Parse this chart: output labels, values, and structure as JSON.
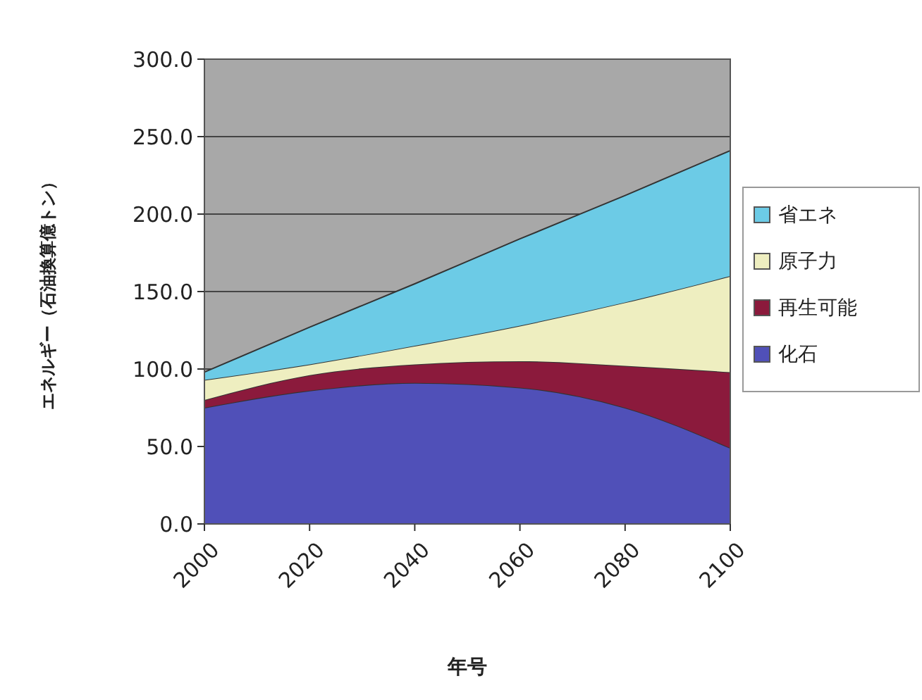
{
  "chart_data": {
    "type": "area",
    "stacked": true,
    "xlabel": "年号",
    "ylabel": "エネルギー（石油換算億トン）",
    "x": [
      2000,
      2020,
      2040,
      2060,
      2080,
      2100
    ],
    "xlim": [
      2000,
      2100
    ],
    "xticks": [
      2000,
      2020,
      2040,
      2060,
      2080,
      2100
    ],
    "ylim": [
      0,
      300
    ],
    "yticks": [
      {
        "value": 0,
        "label": "0.0"
      },
      {
        "value": 50,
        "label": "50.0"
      },
      {
        "value": 100,
        "label": "100.0"
      },
      {
        "value": 150,
        "label": "150.0"
      },
      {
        "value": 200,
        "label": "200.0"
      },
      {
        "value": 250,
        "label": "250.0"
      },
      {
        "value": 300,
        "label": "300.0"
      }
    ],
    "grid": "y",
    "legend": "right",
    "series": [
      {
        "name": "化石",
        "color": "#5050b8",
        "values": [
          75,
          86,
          91,
          88,
          75,
          49
        ]
      },
      {
        "name": "再生可能",
        "color": "#8b1a3c",
        "values": [
          5,
          10,
          12,
          17,
          27,
          49
        ]
      },
      {
        "name": "原子力",
        "color": "#eeeec0",
        "values": [
          13,
          7,
          12,
          23,
          41,
          62
        ]
      },
      {
        "name": "省エネ",
        "color": "#6ccbe6",
        "values": [
          5,
          24,
          40,
          56,
          69,
          81
        ]
      }
    ]
  }
}
